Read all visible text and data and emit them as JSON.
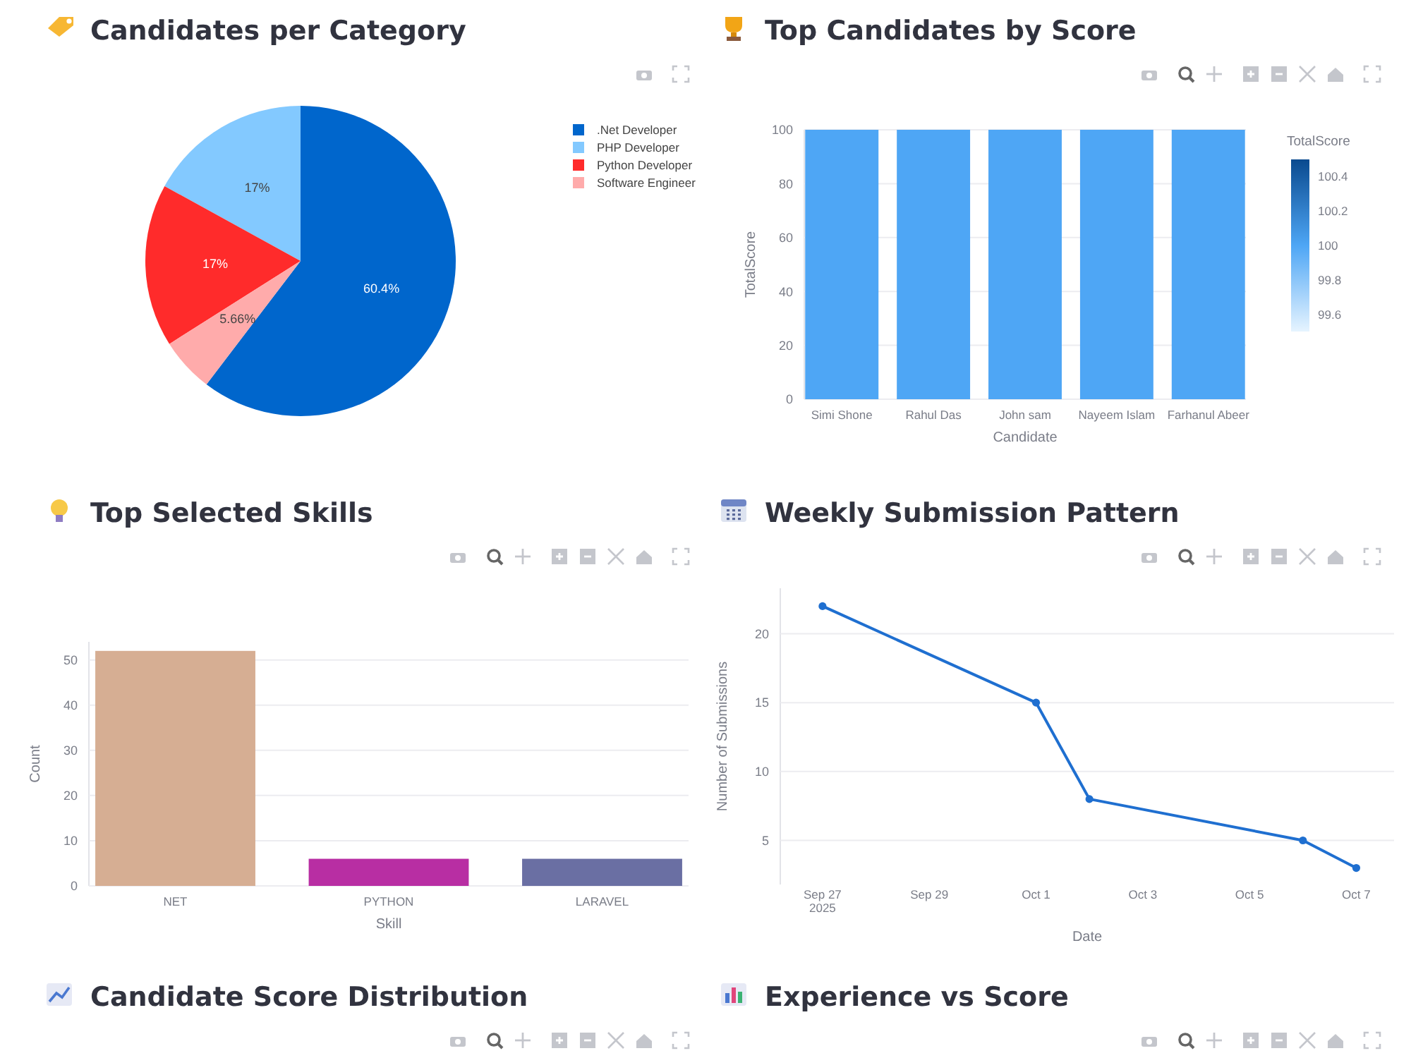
{
  "chart_data": [
    {
      "type": "pie",
      "title": "Candidates per Category",
      "categories": [
        ".Net Developer",
        "PHP Developer",
        "Python Developer",
        "Software Engineer"
      ],
      "values": [
        60.4,
        17,
        17,
        5.66
      ],
      "colors": [
        "#0066cc",
        "#83c9ff",
        "#ff2b2b",
        "#ffabab"
      ],
      "value_labels": [
        "60.4%",
        "17%",
        "17%",
        "5.66%"
      ],
      "legend": "top right"
    },
    {
      "type": "bar",
      "title": "Top Candidates by Score",
      "categories": [
        "Simi Shone",
        "Rahul Das",
        "John sam",
        "Nayeem Islam",
        "Farhanul Abeer"
      ],
      "values": [
        100,
        100,
        100,
        100,
        100
      ],
      "cvalues": [
        100,
        100,
        100,
        100,
        100
      ],
      "clim": [
        99.5,
        100.5
      ],
      "cticks": [
        99.6,
        99.8,
        100,
        100.2,
        100.4
      ],
      "clabel": "TotalScore",
      "xlabel": "Candidate",
      "ylabel": "TotalScore",
      "ylim": [
        0,
        100
      ],
      "yticks": [
        0,
        20,
        40,
        60,
        80,
        100
      ],
      "grid": "y"
    },
    {
      "type": "bar",
      "title": "Top Selected Skills",
      "categories": [
        "NET",
        "PYTHON",
        "LARAVEL"
      ],
      "values": [
        52,
        6,
        6
      ],
      "colors": [
        "#d6ae93",
        "#b82ea3",
        "#6a6fa3"
      ],
      "xlabel": "Skill",
      "ylabel": "Count",
      "ylim": [
        0,
        54
      ],
      "yticks": [
        0,
        10,
        20,
        30,
        40,
        50
      ],
      "grid": "y"
    },
    {
      "type": "line",
      "title": "Weekly Submission Pattern",
      "x": [
        "2025-09-27",
        "2025-10-01",
        "2025-10-02",
        "2025-10-06",
        "2025-10-07"
      ],
      "values": [
        22,
        15,
        8,
        5,
        3
      ],
      "color": "#1f6fd0",
      "marker": "circle",
      "xlabel": "Date",
      "ylabel": "Number of Submissions",
      "xlim": [
        "2025-09-26T05:00",
        "2025-10-07T17:00"
      ],
      "xticks": [
        {
          "value": "2025-09-27",
          "label": "Sep 27\n2025"
        },
        {
          "value": "2025-09-29",
          "label": "Sep 29"
        },
        {
          "value": "2025-10-01",
          "label": "Oct 1"
        },
        {
          "value": "2025-10-03",
          "label": "Oct 3"
        },
        {
          "value": "2025-10-05",
          "label": "Oct 5"
        },
        {
          "value": "2025-10-07",
          "label": "Oct 7"
        }
      ],
      "ylim": [
        1.8,
        23.3
      ],
      "yticks": [
        5,
        10,
        15,
        20
      ],
      "grid": "y"
    },
    {
      "type": "other",
      "title": "Candidate Score Distribution"
    },
    {
      "type": "other",
      "title": "Experience vs Score"
    }
  ]
}
